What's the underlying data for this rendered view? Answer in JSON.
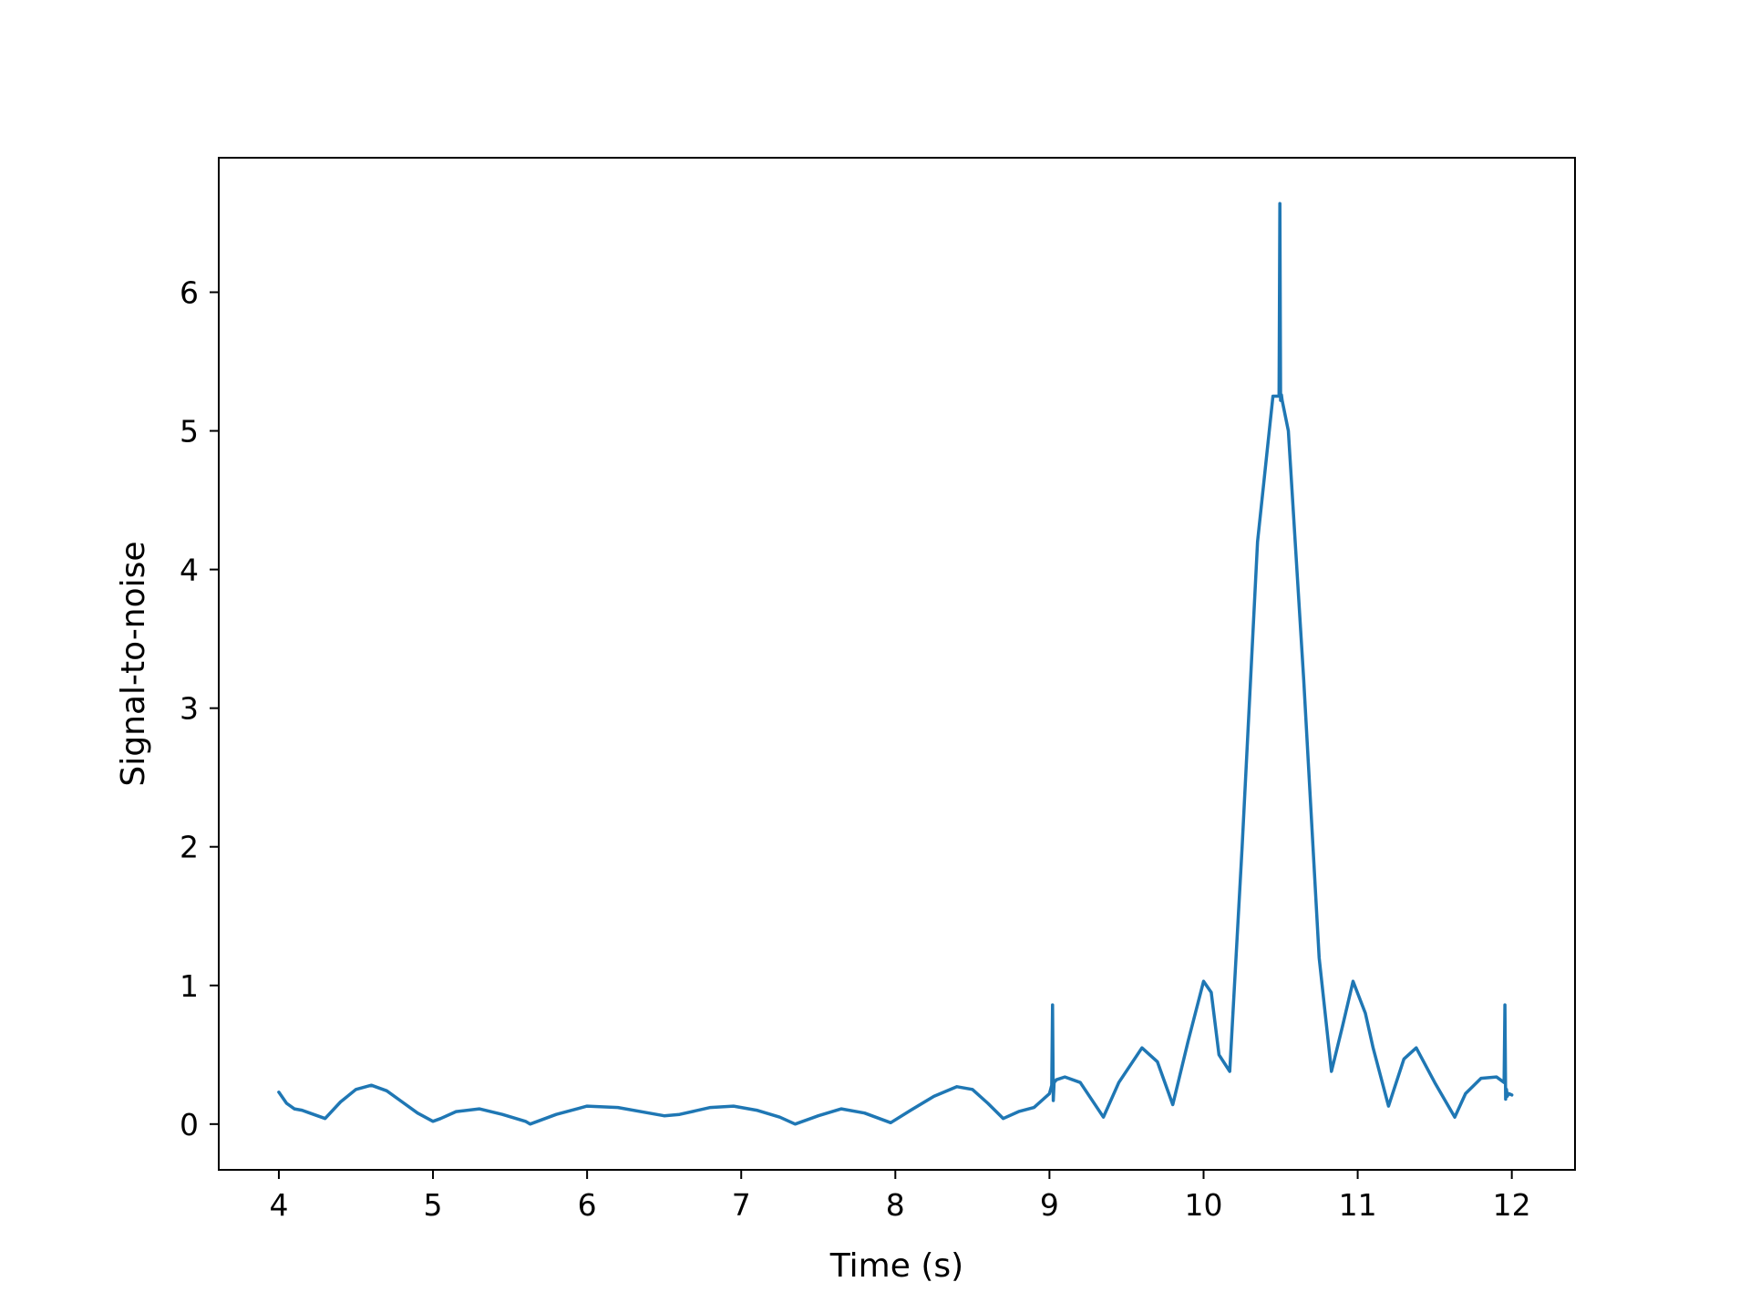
{
  "chart_data": {
    "type": "line",
    "title": "",
    "xlabel": "Time (s)",
    "ylabel": "Signal-to-noise",
    "xlim": [
      3.61,
      12.41
    ],
    "ylim": [
      -0.33,
      6.97
    ],
    "xticks": [
      4,
      5,
      6,
      7,
      8,
      9,
      10,
      11,
      12
    ],
    "yticks": [
      0,
      1,
      2,
      3,
      4,
      5,
      6
    ],
    "grid": false,
    "legend": "none",
    "line_color": "#1f77b4",
    "series": [
      {
        "x": [
          4.0,
          4.05,
          4.1,
          4.15,
          4.2,
          4.3,
          4.4,
          4.5,
          4.6,
          4.7,
          4.8,
          4.9,
          5.0,
          5.05,
          5.15,
          5.3,
          5.45,
          5.6,
          5.63,
          5.8,
          6.0,
          6.2,
          6.4,
          6.5,
          6.6,
          6.8,
          6.95,
          7.1,
          7.25,
          7.35,
          7.5,
          7.65,
          7.8,
          7.97,
          8.1,
          8.25,
          8.4,
          8.5,
          8.6,
          8.7,
          8.8,
          8.9,
          9.0,
          9.015,
          9.02,
          9.025,
          9.03,
          9.045,
          9.1,
          9.2,
          9.35,
          9.45,
          9.6,
          9.7,
          9.8,
          9.9,
          10.0,
          10.05,
          10.1,
          10.17,
          10.25,
          10.35,
          10.45,
          10.49,
          10.495,
          10.5,
          10.505,
          10.51,
          10.55,
          10.65,
          10.75,
          10.83,
          10.9,
          10.97,
          11.05,
          11.1,
          11.2,
          11.3,
          11.38,
          11.5,
          11.63,
          11.7,
          11.8,
          11.9,
          11.95,
          11.955,
          11.96,
          11.965,
          11.97,
          11.98,
          12.0
        ],
        "y": [
          0.23,
          0.15,
          0.11,
          0.1,
          0.08,
          0.04,
          0.16,
          0.25,
          0.28,
          0.24,
          0.16,
          0.08,
          0.02,
          0.04,
          0.09,
          0.11,
          0.07,
          0.02,
          0.0,
          0.07,
          0.13,
          0.12,
          0.08,
          0.06,
          0.07,
          0.12,
          0.13,
          0.1,
          0.05,
          0.0,
          0.06,
          0.11,
          0.08,
          0.01,
          0.1,
          0.2,
          0.27,
          0.25,
          0.15,
          0.04,
          0.09,
          0.12,
          0.22,
          0.28,
          0.86,
          0.17,
          0.3,
          0.32,
          0.34,
          0.3,
          0.05,
          0.3,
          0.55,
          0.45,
          0.14,
          0.6,
          1.03,
          0.95,
          0.5,
          0.38,
          2.0,
          4.2,
          5.25,
          5.25,
          6.64,
          5.22,
          5.26,
          5.22,
          5.0,
          3.2,
          1.2,
          0.38,
          0.7,
          1.03,
          0.8,
          0.55,
          0.13,
          0.47,
          0.55,
          0.3,
          0.05,
          0.22,
          0.33,
          0.34,
          0.3,
          0.86,
          0.18,
          0.25,
          0.2,
          0.22,
          0.21
        ]
      }
    ]
  }
}
